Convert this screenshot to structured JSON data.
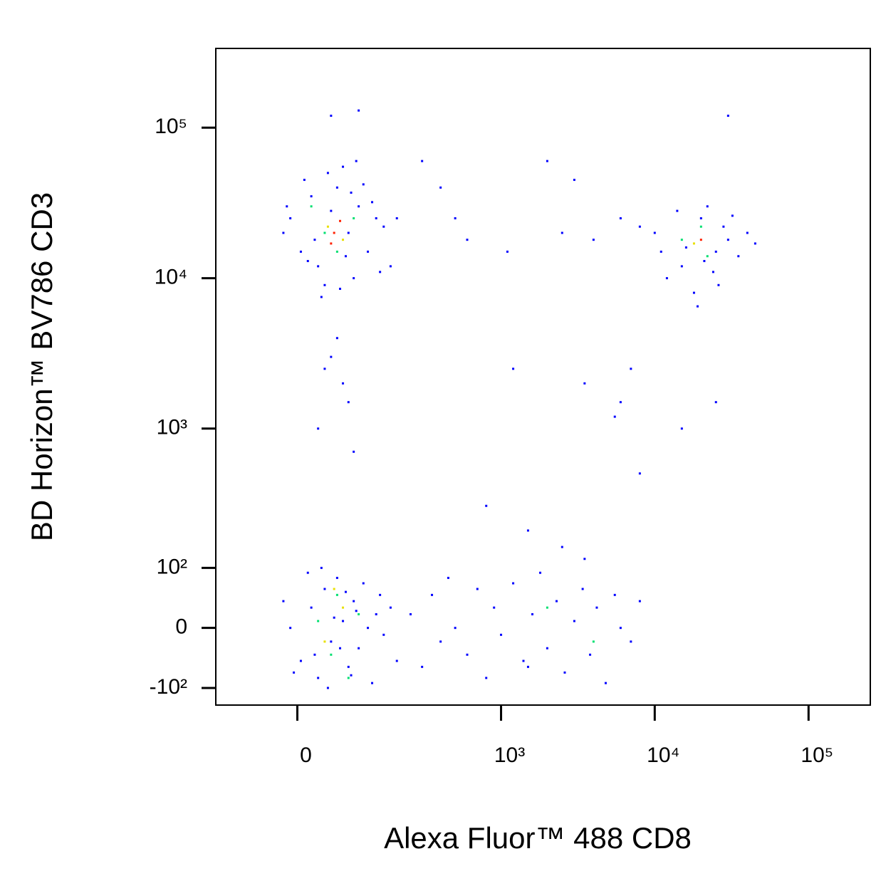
{
  "chart_data": {
    "type": "scatter",
    "scale": "biexponential",
    "xlabel": "Alexa Fluor™ 488 CD8",
    "ylabel": "BD Horizon™ BV786 CD3",
    "xlim": [
      -147,
      252000
    ],
    "ylim": [
      -140,
      336000
    ],
    "xticks": [
      0,
      {
        "value": 1000,
        "label": "10³"
      },
      {
        "value": 10000,
        "label": "10⁴"
      },
      {
        "value": 100000,
        "label": "10⁵"
      }
    ],
    "yticks": [
      {
        "value": -100,
        "label": "-10²"
      },
      0,
      {
        "value": 100,
        "label": "10²"
      },
      {
        "value": 1000,
        "label": "10³"
      },
      {
        "value": 10000,
        "label": "10⁴"
      },
      {
        "value": 100000,
        "label": "10⁵"
      }
    ],
    "series": [
      {
        "color": "#0000ff",
        "x": [
          -10,
          5,
          20,
          30,
          60,
          80,
          100,
          120,
          140,
          150,
          -20,
          10,
          40,
          70,
          90,
          110,
          130,
          50,
          25,
          75,
          160,
          -15,
          95,
          35,
          65,
          200,
          180,
          45,
          85,
          15,
          10000,
          15000,
          20000,
          25000,
          30000,
          12000,
          18000,
          22000,
          28000,
          35000,
          40000,
          8000,
          16000,
          24000,
          32000,
          14000,
          26000,
          19000,
          45000,
          11000,
          6000,
          21000,
          -10,
          5,
          20,
          30,
          40,
          50,
          60,
          70,
          80,
          90,
          100,
          110,
          120,
          130,
          140,
          150,
          -20,
          -5,
          15,
          25,
          35,
          45,
          55,
          65,
          75,
          85,
          95,
          160,
          180,
          200,
          250,
          300,
          350,
          400,
          450,
          500,
          600,
          700,
          800,
          900,
          1000,
          1200,
          1400,
          1600,
          1800,
          2000,
          2300,
          2600,
          3000,
          3400,
          3800,
          4200,
          4800,
          5500,
          6000,
          7000,
          8000,
          2500,
          1500,
          3500,
          50,
          40,
          60,
          70,
          80,
          30,
          90,
          400,
          500,
          300,
          600,
          1100,
          2000,
          2500,
          3000,
          4000,
          3500,
          6000,
          5500,
          7000,
          8000,
          15000,
          25000,
          1200,
          800,
          1500,
          30000,
          50,
          100
        ],
        "y": [
          25000,
          15000,
          35000,
          12000,
          40000,
          20000,
          30000,
          15000,
          25000,
          11000,
          20000,
          45000,
          9000,
          55000,
          10000,
          42000,
          32000,
          28000,
          18000,
          14000,
          22000,
          30000,
          60000,
          7500,
          8500,
          25000,
          12000,
          50000,
          37000,
          13000,
          20000,
          12000,
          25000,
          15000,
          18000,
          10000,
          8000,
          30000,
          22000,
          14000,
          20000,
          22000,
          16000,
          11000,
          26000,
          28000,
          9000,
          6500,
          17000,
          15000,
          25000,
          13000,
          0,
          -50,
          30,
          -80,
          60,
          -20,
          80,
          10,
          -60,
          40,
          -30,
          70,
          0,
          -90,
          20,
          50,
          40,
          -70,
          90,
          -40,
          100,
          -100,
          15,
          -30,
          55,
          -75,
          25,
          -10,
          30,
          -50,
          20,
          -60,
          50,
          -20,
          80,
          0,
          -40,
          60,
          -80,
          30,
          -10,
          70,
          -50,
          20,
          90,
          -30,
          40,
          -70,
          10,
          60,
          -40,
          30,
          -90,
          50,
          0,
          -20,
          40,
          150,
          -60,
          120,
          3000,
          2500,
          4000,
          2000,
          1500,
          1000,
          700,
          40000,
          25000,
          60000,
          18000,
          15000,
          60000,
          20000,
          45000,
          18000,
          2000,
          1500,
          1200,
          2500,
          500,
          1000,
          1500,
          2500,
          300,
          200,
          120000,
          120000,
          130000
        ]
      },
      {
        "color": "#00e070",
        "x": [
          40,
          60,
          90,
          20,
          15000,
          20000,
          22000,
          30,
          50,
          60,
          100,
          80,
          2000,
          4000
        ],
        "y": [
          20000,
          15000,
          25000,
          30000,
          18000,
          22000,
          14000,
          10,
          -40,
          50,
          20,
          -80,
          30,
          -20
        ]
      },
      {
        "color": "#e8e000",
        "x": [
          45,
          70,
          18000,
          40,
          70,
          55
        ],
        "y": [
          22000,
          18000,
          17000,
          -20,
          30,
          60
        ]
      },
      {
        "color": "#ff2000",
        "x": [
          55,
          65,
          50,
          20000
        ],
        "y": [
          20000,
          24000,
          17000,
          18000
        ]
      }
    ]
  }
}
